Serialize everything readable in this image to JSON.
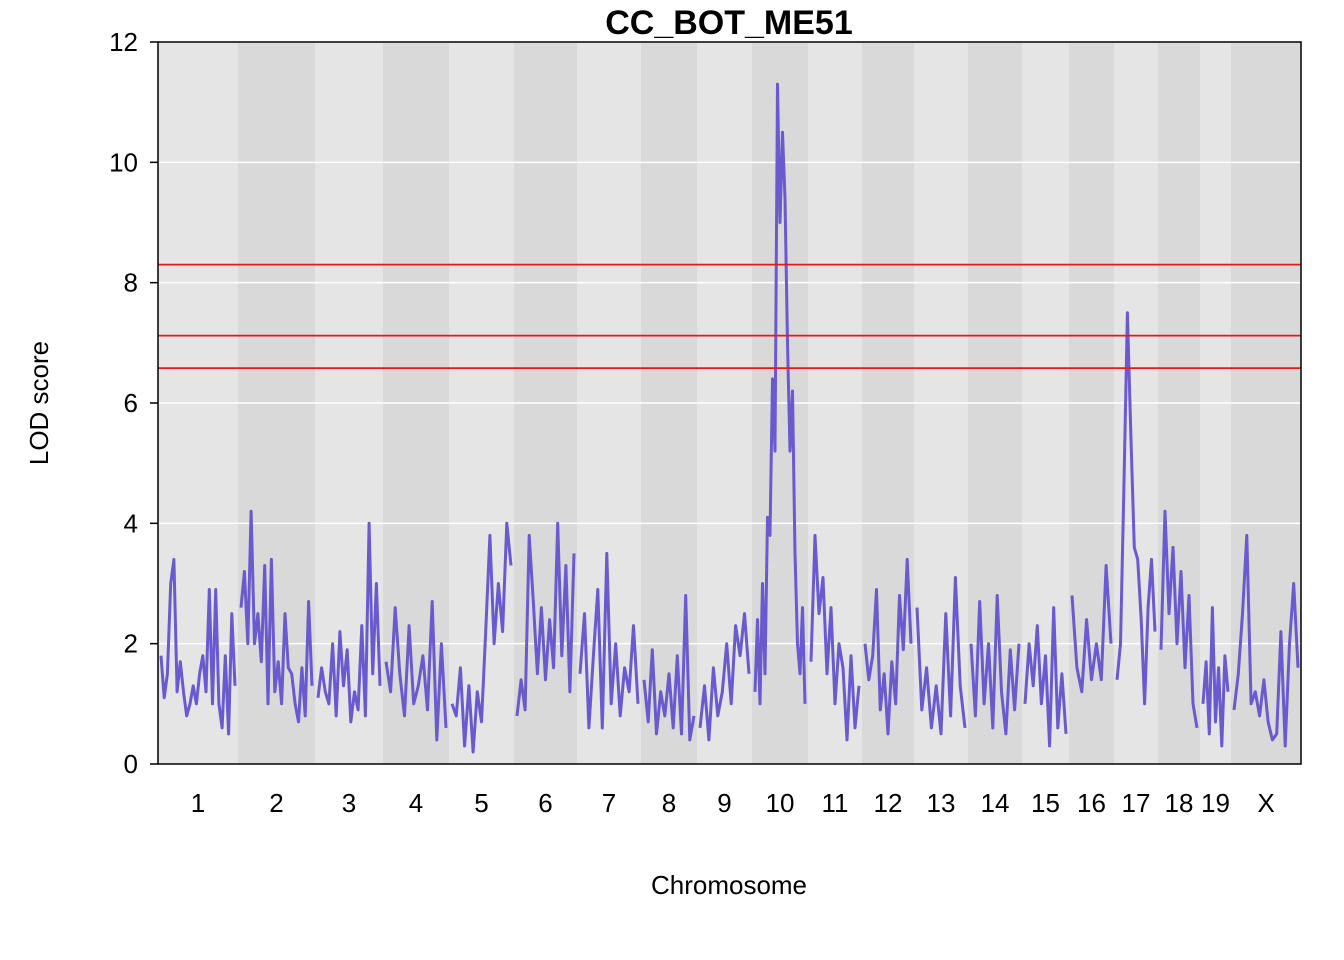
{
  "chart_data": {
    "type": "line",
    "title": "CC_BOT_ME51",
    "xlabel": "Chromosome",
    "ylabel": "LOD score",
    "ylim": [
      0,
      12
    ],
    "yticks": [
      0,
      2,
      4,
      6,
      8,
      10,
      12
    ],
    "grid": true,
    "background": "alternating gray bands per chromosome",
    "chromosomes": [
      "1",
      "2",
      "3",
      "4",
      "5",
      "6",
      "7",
      "8",
      "9",
      "10",
      "11",
      "12",
      "13",
      "14",
      "15",
      "16",
      "17",
      "18",
      "19",
      "X"
    ],
    "thresholds": [
      8.3,
      7.12,
      6.58
    ],
    "series": [
      {
        "chromosome_profiles": {
          "1": [
            1.8,
            1.1,
            1.5,
            3.0,
            3.4,
            1.2,
            1.7,
            1.2,
            0.8,
            1.0,
            1.3,
            1.0,
            1.5,
            1.8,
            1.2,
            2.9,
            1.0,
            2.9,
            1.0,
            0.6,
            1.8,
            0.5,
            2.5,
            1.3
          ],
          "2": [
            2.6,
            3.2,
            2.0,
            4.2,
            2.0,
            2.5,
            1.7,
            3.3,
            1.0,
            3.4,
            1.2,
            1.7,
            1.0,
            2.5,
            1.6,
            1.5,
            1.0,
            0.7,
            1.6,
            0.8,
            2.7,
            1.3
          ],
          "3": [
            1.1,
            1.6,
            1.2,
            1.0,
            2.0,
            0.8,
            2.2,
            1.3,
            1.9,
            0.7,
            1.2,
            0.9,
            2.3,
            0.8,
            4.0,
            1.5,
            3.0,
            1.3
          ],
          "4": [
            1.7,
            1.2,
            2.6,
            1.5,
            0.8,
            2.3,
            1.0,
            1.3,
            1.8,
            0.9,
            2.7,
            0.4,
            2.0,
            0.6
          ],
          "5": [
            1.0,
            0.8,
            1.6,
            0.3,
            1.3,
            0.2,
            1.2,
            0.7,
            2.2,
            3.8,
            2.0,
            3.0,
            2.2,
            4.0,
            3.3
          ],
          "6": [
            0.8,
            1.4,
            0.9,
            3.8,
            2.7,
            1.5,
            2.6,
            1.4,
            2.4,
            1.6,
            4.0,
            1.8,
            3.3,
            1.2,
            3.5
          ],
          "7": [
            1.5,
            2.5,
            0.6,
            1.8,
            2.9,
            0.6,
            3.5,
            1.0,
            2.0,
            0.8,
            1.6,
            1.2,
            2.3,
            1.0
          ],
          "8": [
            1.4,
            0.7,
            1.9,
            0.5,
            1.2,
            0.8,
            1.5,
            0.6,
            1.8,
            0.5,
            2.8,
            0.4,
            0.8
          ],
          "9": [
            0.6,
            1.3,
            0.4,
            1.6,
            0.8,
            1.2,
            2.0,
            1.0,
            2.3,
            1.8,
            2.5,
            1.5
          ],
          "10": [
            1.2,
            2.4,
            1.0,
            3.0,
            1.5,
            4.1,
            3.8,
            6.4,
            5.2,
            11.3,
            9.0,
            10.5,
            9.4,
            7.0,
            5.2,
            6.2,
            3.5,
            2.0,
            1.5,
            2.6,
            1.0
          ],
          "11": [
            1.7,
            3.8,
            2.5,
            3.1,
            1.5,
            2.6,
            1.0,
            2.0,
            1.6,
            0.4,
            1.8,
            0.6,
            1.3
          ],
          "12": [
            2.0,
            1.4,
            1.8,
            2.9,
            0.9,
            1.5,
            0.5,
            1.7,
            1.0,
            2.8,
            1.9,
            3.4,
            2.0
          ],
          "13": [
            2.6,
            0.9,
            1.6,
            0.6,
            1.3,
            0.5,
            2.5,
            0.8,
            3.1,
            1.3,
            0.6
          ],
          "14": [
            2.0,
            0.8,
            2.7,
            1.0,
            2.0,
            0.6,
            2.8,
            1.2,
            0.5,
            1.9,
            0.9,
            2.0
          ],
          "15": [
            1.0,
            2.0,
            1.3,
            2.3,
            1.0,
            1.8,
            0.3,
            2.6,
            0.6,
            1.5,
            0.5
          ],
          "16": [
            2.8,
            1.6,
            1.2,
            2.4,
            1.4,
            2.0,
            1.4,
            3.3,
            2.0
          ],
          "17": [
            1.4,
            2.0,
            4.6,
            7.5,
            5.5,
            3.6,
            3.4,
            2.4,
            1.0,
            2.6,
            3.4,
            2.2
          ],
          "18": [
            1.9,
            4.2,
            2.5,
            3.6,
            2.0,
            3.2,
            1.6,
            2.8,
            1.0,
            0.6
          ],
          "19": [
            1.0,
            1.7,
            0.5,
            2.6,
            0.7,
            1.6,
            0.3,
            1.8,
            1.2
          ],
          "X": [
            0.9,
            1.5,
            2.5,
            3.8,
            1.0,
            1.2,
            0.8,
            1.4,
            0.7,
            0.4,
            0.5,
            2.2,
            0.3,
            2.0,
            3.0,
            1.6
          ]
        }
      }
    ]
  },
  "colors": {
    "line": "#6A5ACD",
    "threshold": "#E41A1C",
    "band_light": "#E5E5E5",
    "band_dark": "#D9D9D9",
    "grid": "#FFFFFF"
  }
}
